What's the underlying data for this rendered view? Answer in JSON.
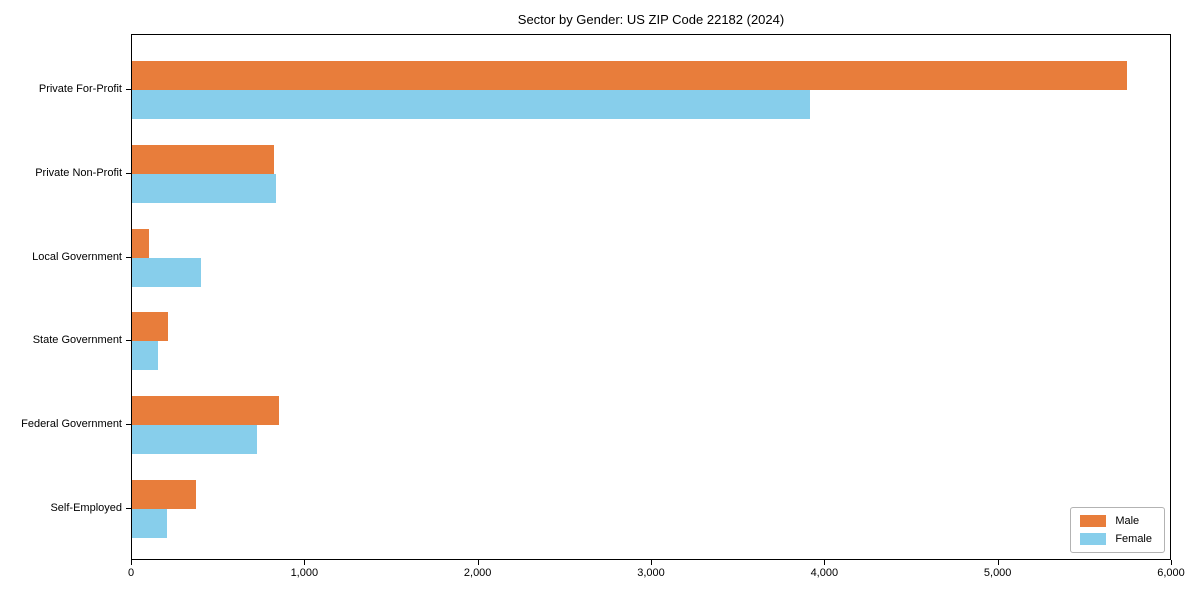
{
  "title": "Sector by Gender: US ZIP Code 22182 (2024)",
  "chart_data": {
    "type": "bar",
    "orientation": "horizontal",
    "title": "Sector by Gender: US ZIP Code 22182 (2024)",
    "categories": [
      "Private For-Profit",
      "Private Non-Profit",
      "Local Government",
      "State Government",
      "Federal Government",
      "Self-Employed"
    ],
    "series": [
      {
        "name": "Male",
        "color": "#e87d3b",
        "values": [
          5750,
          820,
          100,
          210,
          850,
          370
        ]
      },
      {
        "name": "Female",
        "color": "#87ceeb",
        "values": [
          3920,
          835,
          400,
          150,
          725,
          205
        ]
      }
    ],
    "xlim": [
      0,
      6000
    ],
    "xticks": [
      0,
      1000,
      2000,
      3000,
      4000,
      5000,
      6000
    ],
    "xtick_labels": [
      "0",
      "1,000",
      "2,000",
      "3,000",
      "4,000",
      "5,000",
      "6,000"
    ],
    "xlabel": "",
    "ylabel": "",
    "grid": false,
    "legend": {
      "position": "lower right",
      "entries": [
        "Male",
        "Female"
      ]
    }
  }
}
